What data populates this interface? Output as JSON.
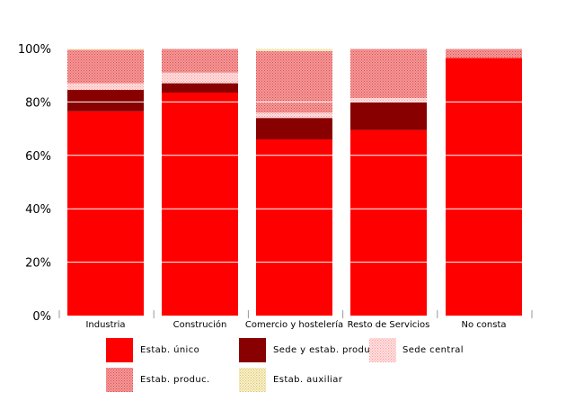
{
  "chart_data": {
    "type": "bar",
    "stacked": true,
    "categories": [
      "Industria",
      "Construción",
      "Comercio y hostelería",
      "Resto de Servicios",
      "No consta"
    ],
    "series": [
      {
        "name": "Estab. único",
        "values": [
          76.5,
          83.5,
          66.0,
          69.5,
          96.5
        ],
        "color": "#ff0000",
        "pattern": "solid"
      },
      {
        "name": "Sede y estab. produc.",
        "values": [
          8.0,
          3.5,
          8.0,
          10.5,
          0.0
        ],
        "color": "#880000",
        "pattern": "solid"
      },
      {
        "name": "Sede central",
        "values": [
          2.5,
          4.0,
          2.0,
          1.5,
          0.0
        ],
        "color": "#ffcccc",
        "pattern": "dots"
      },
      {
        "name": "Estab. produc.",
        "values": [
          12.5,
          9.0,
          23.0,
          18.5,
          3.5
        ],
        "color": "#f08080",
        "pattern": "dots"
      },
      {
        "name": "Estab. auxiliar",
        "values": [
          0.5,
          0.0,
          1.0,
          0.0,
          0.0
        ],
        "color": "#f2e6b0",
        "pattern": "dots"
      }
    ],
    "ylim": [
      0,
      100
    ],
    "yticks": [
      "0%",
      "20%",
      "40%",
      "60%",
      "80%",
      "100%"
    ],
    "grid": true,
    "legend_position": "bottom"
  }
}
